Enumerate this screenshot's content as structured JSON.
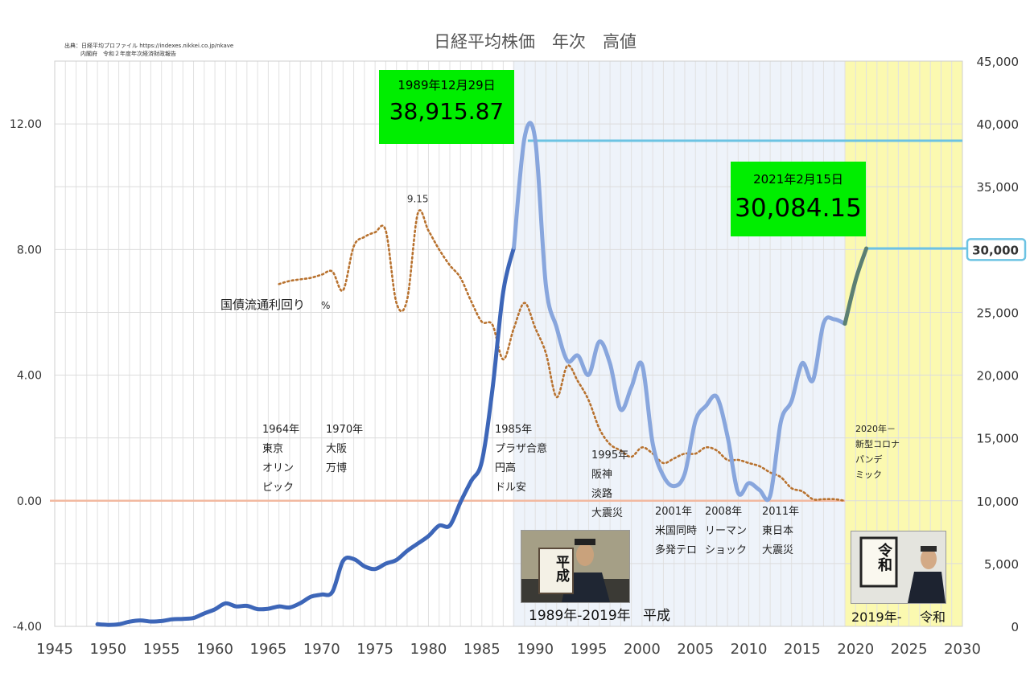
{
  "source_note": {
    "line1": "出典：日経平均プロファイル https://indexes.nikkei.co.jp/nkave",
    "line2": "内閣府　令和２年度年次経済財政報告"
  },
  "colors": {
    "nikkei_showa": "#3d66b8",
    "nikkei_heisei": "#88a6dd",
    "nikkei_reiwa": "#5b7f73",
    "bond_yield": "#b8722f",
    "zero_line": "#f2b9a0",
    "peak_line": "#6cc3e3",
    "heisei_band": "#eef3fa",
    "reiwa_band": "#fbf9b0",
    "highlight_box": "#00ee00"
  },
  "chart_data": {
    "type": "line",
    "title": "日経平均株価　年次　高値",
    "x_ticks": [
      1945,
      1950,
      1955,
      1960,
      1965,
      1970,
      1975,
      1980,
      1985,
      1990,
      1995,
      2000,
      2005,
      2010,
      2015,
      2020,
      2025,
      2030
    ],
    "xlim": [
      1945,
      2030
    ],
    "y_left_ticks": [
      "-4.00",
      "0.00",
      "4.00",
      "8.00",
      "12.00"
    ],
    "y_left_lim": [
      -4,
      14
    ],
    "y_right_ticks": [
      "0",
      "5,000",
      "10,000",
      "15,000",
      "20,000",
      "25,000",
      "30,000",
      "35,000",
      "40,000",
      "45,000"
    ],
    "y_right_lim": [
      0,
      45000
    ],
    "grid": true,
    "series": [
      {
        "name": "日経平均株価",
        "axis": "right",
        "x": [
          1949,
          1950,
          1951,
          1952,
          1953,
          1954,
          1955,
          1956,
          1957,
          1958,
          1959,
          1960,
          1961,
          1962,
          1963,
          1964,
          1965,
          1966,
          1967,
          1968,
          1969,
          1970,
          1971,
          1972,
          1973,
          1974,
          1975,
          1976,
          1977,
          1978,
          1979,
          1980,
          1981,
          1982,
          1983,
          1984,
          1985,
          1986,
          1987,
          1988,
          1989,
          1990,
          1991,
          1992,
          1993,
          1994,
          1995,
          1996,
          1997,
          1998,
          1999,
          2000,
          2001,
          2002,
          2003,
          2004,
          2005,
          2006,
          2007,
          2008,
          2009,
          2010,
          2011,
          2012,
          2013,
          2014,
          2015,
          2016,
          2017,
          2018,
          2019,
          2020,
          2021
        ],
        "values": [
          176,
          115,
          167,
          373,
          474,
          386,
          425,
          562,
          596,
          667,
          1030,
          1356,
          1829,
          1589,
          1634,
          1369,
          1404,
          1588,
          1506,
          1851,
          2359,
          2534,
          2740,
          5208,
          5360,
          4788,
          4564,
          4990,
          5287,
          6002,
          6590,
          7188,
          8020,
          8027,
          9893,
          11577,
          13129,
          18936,
          26646,
          30159,
          38915,
          38712,
          27146,
          23801,
          21148,
          21552,
          20023,
          22666,
          20910,
          17264,
          19036,
          20833,
          14529,
          11979,
          11161,
          12163,
          16344,
          17563,
          18261,
          15156,
          10639,
          11408,
          10857,
          10395,
          16291,
          17935,
          20952,
          19594,
          24129,
          24448,
          24091,
          27568,
          30084
        ]
      },
      {
        "name": "国債流通利回り %",
        "axis": "left",
        "x": [
          1966,
          1967,
          1968,
          1969,
          1970,
          1971,
          1972,
          1973,
          1974,
          1975,
          1976,
          1977,
          1978,
          1979,
          1980,
          1981,
          1982,
          1983,
          1984,
          1985,
          1986,
          1987,
          1988,
          1989,
          1990,
          1991,
          1992,
          1993,
          1994,
          1995,
          1996,
          1997,
          1998,
          1999,
          2000,
          2001,
          2002,
          2003,
          2004,
          2005,
          2006,
          2007,
          2008,
          2009,
          2010,
          2011,
          2012,
          2013,
          2014,
          2015,
          2016,
          2017,
          2018,
          2019
        ],
        "values": [
          6.9,
          7.0,
          7.05,
          7.1,
          7.2,
          7.3,
          6.7,
          8.1,
          8.4,
          8.55,
          8.6,
          6.3,
          6.4,
          9.15,
          8.6,
          8.0,
          7.5,
          7.1,
          6.35,
          5.7,
          5.6,
          4.5,
          5.5,
          6.3,
          5.5,
          4.7,
          3.3,
          4.3,
          3.8,
          3.2,
          2.3,
          1.8,
          1.6,
          1.4,
          1.7,
          1.5,
          1.2,
          1.35,
          1.5,
          1.5,
          1.7,
          1.6,
          1.3,
          1.3,
          1.2,
          1.1,
          0.9,
          0.75,
          0.4,
          0.3,
          0.05,
          0.05,
          0.05,
          0.0
        ]
      }
    ],
    "peaks": [
      {
        "date": "1989年12月29日",
        "value": "38,915.87"
      },
      {
        "date": "2021年2月15日",
        "value": "30,084.15"
      }
    ],
    "highlighted_right_tick": "30,000",
    "annotations": [
      {
        "id": "tokyo-olympics",
        "lines": [
          "1964年",
          "東京",
          "オリン",
          "ピック"
        ]
      },
      {
        "id": "osaka-expo",
        "lines": [
          "1970年",
          "大阪",
          "万博"
        ]
      },
      {
        "id": "plaza-accord",
        "lines": [
          "1985年",
          "プラザ合意",
          "円高",
          "ドル安"
        ]
      },
      {
        "id": "hanshin-earthquake",
        "lines": [
          "1995年",
          "阪神",
          "淡路",
          "大震災"
        ]
      },
      {
        "id": "sept11",
        "lines": [
          "2001年",
          "米国同時",
          "多発テロ"
        ]
      },
      {
        "id": "lehman",
        "lines": [
          "2008年",
          "リーマン",
          "ショック"
        ]
      },
      {
        "id": "tohoku-earthquake",
        "lines": [
          "2011年",
          "東日本",
          "大震災"
        ]
      },
      {
        "id": "covid",
        "lines": [
          "2020年－",
          "新型コロナ",
          "パンデ",
          "ミック"
        ]
      }
    ],
    "bond_peak_label": "9.15",
    "bond_series_label": "国債流通利回り",
    "bond_series_unit": "%",
    "era_labels": {
      "heisei": {
        "range": "1989年-2019年",
        "name": "平成"
      },
      "reiwa": {
        "range": "2019年-",
        "name": "令和"
      }
    }
  },
  "photos": {
    "heisei_placard": "平成",
    "reiwa_placard": "令和"
  }
}
